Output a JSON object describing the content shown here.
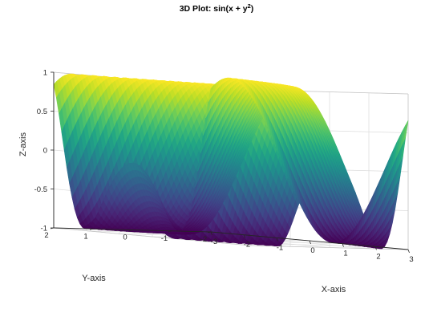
{
  "chart_data": {
    "type": "surface",
    "title": "3D Plot: sin(x + y",
    "title_sup": "2",
    "title_close": ")",
    "xlabel": "X-axis",
    "ylabel": "Y-axis",
    "zlabel": "Z-axis",
    "function": "sin(x + y^2)",
    "xlim": [
      -3,
      3
    ],
    "ylim": [
      -2,
      2
    ],
    "zlim": [
      -1,
      1
    ],
    "xticks": [
      "-3",
      "-2",
      "-1",
      "0",
      "1",
      "2",
      "3"
    ],
    "yticks": [
      "-2",
      "-1",
      "0",
      "1",
      "2"
    ],
    "zticks": [
      "-1",
      "-0.5",
      "0",
      "0.5",
      "1"
    ],
    "colormap": "viridis",
    "grid": true
  }
}
